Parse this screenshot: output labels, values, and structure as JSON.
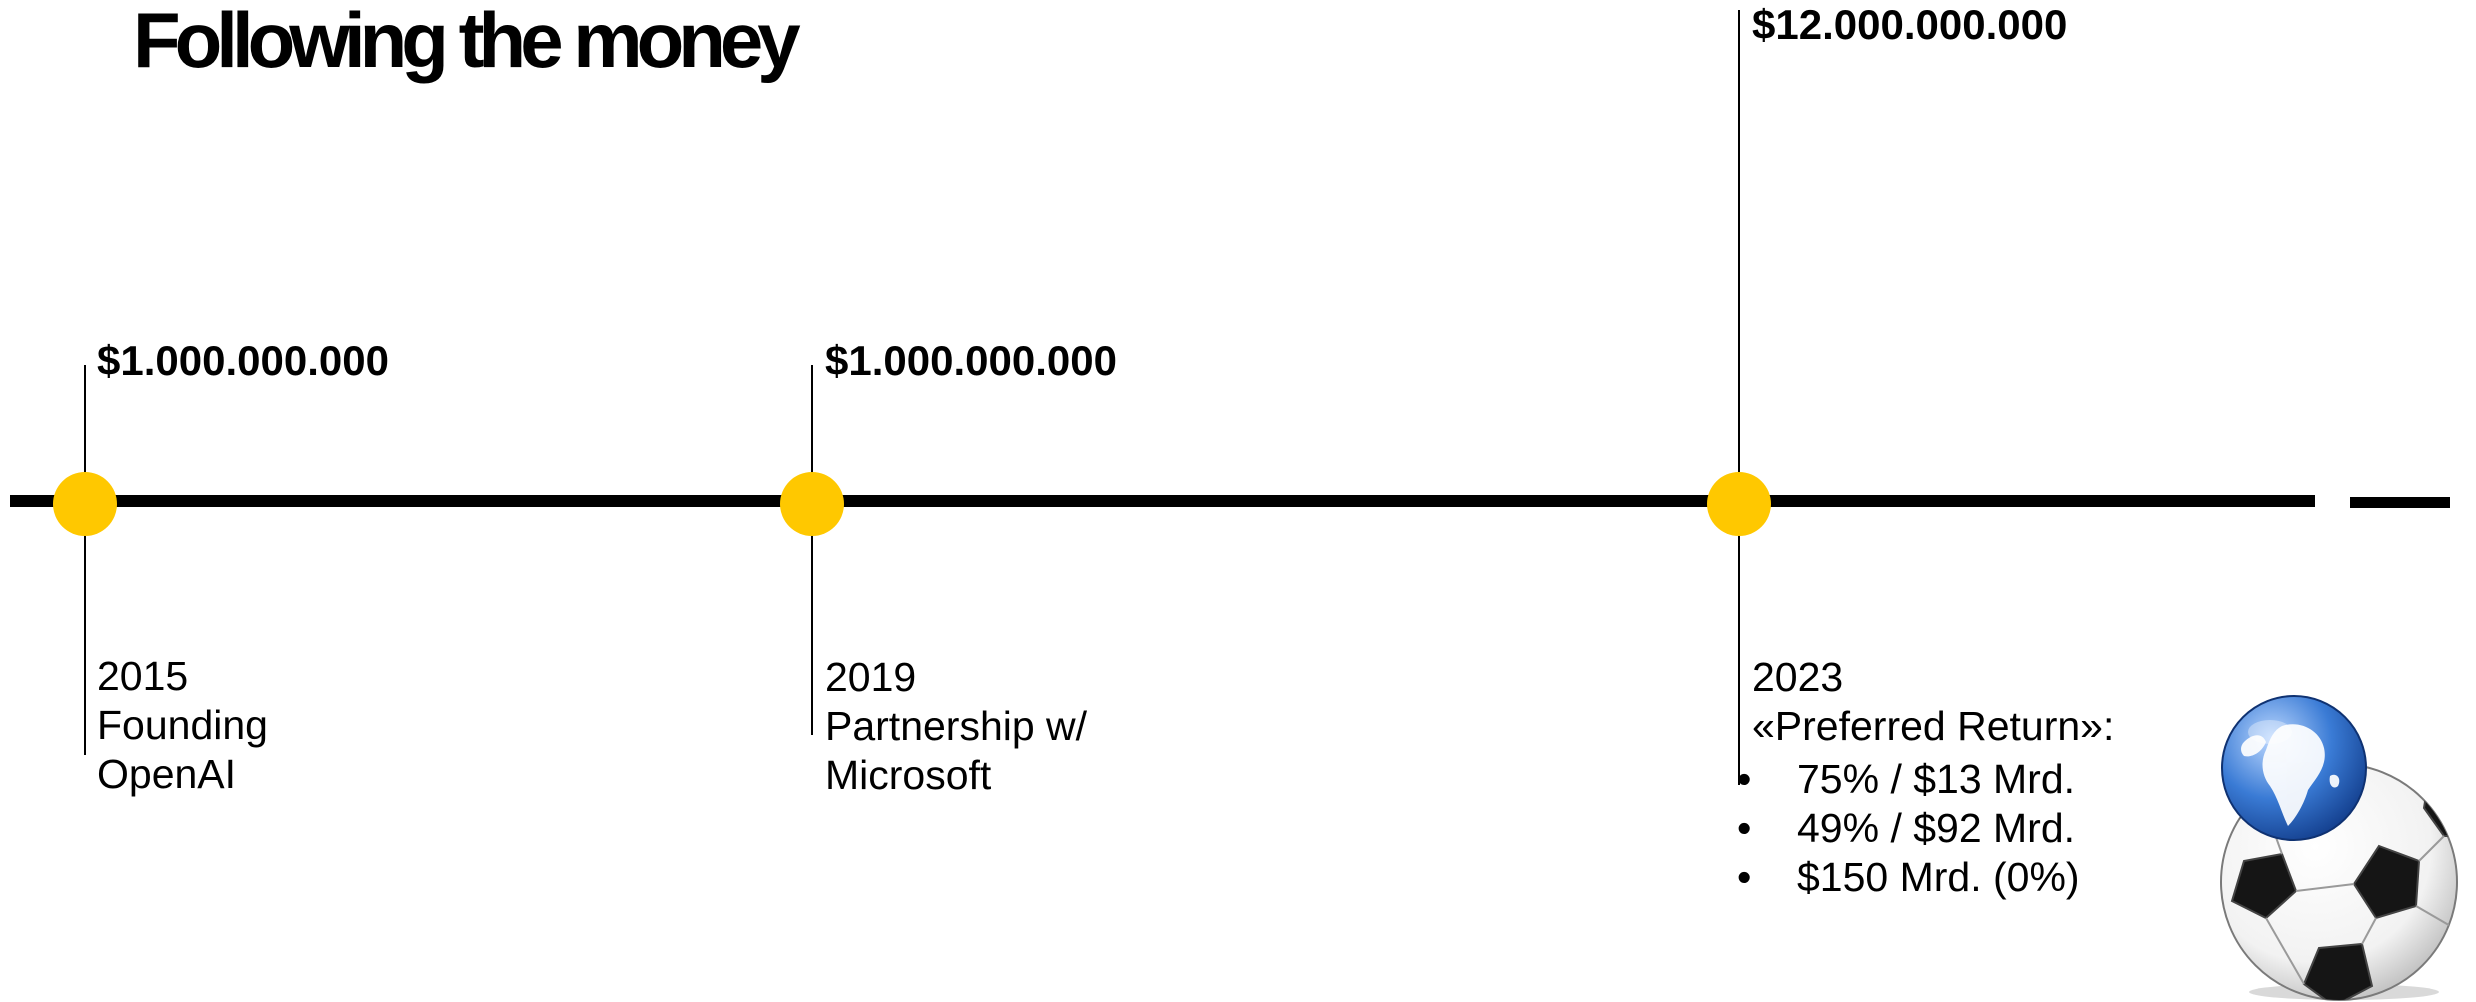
{
  "title": "Following the money",
  "events": [
    {
      "amount": "$1.000.000.000",
      "year": "2015",
      "lines": [
        "Founding",
        "OpenAI"
      ]
    },
    {
      "amount": "$1.000.000.000",
      "year": "2019",
      "lines": [
        "Partnership w/",
        "Microsoft"
      ]
    },
    {
      "amount": "$12.000.000.000",
      "year": "2023",
      "lines": [
        "«Preferred Return»:"
      ]
    }
  ],
  "bullets": [
    "75% / $13 Mrd.",
    "49% / $92 Mrd.",
    "$150 Mrd. (0%)"
  ],
  "colors": {
    "node": "#ffc800",
    "axis": "#000000",
    "globe": "#3a7bd5"
  },
  "illustration": "soccer-ball-with-globe"
}
